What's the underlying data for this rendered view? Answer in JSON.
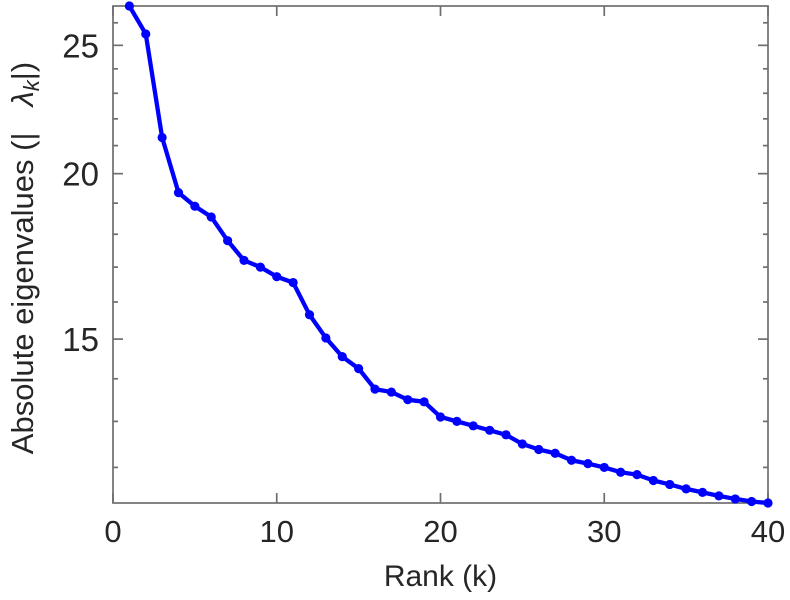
{
  "chart_data": {
    "type": "line",
    "title": "",
    "xlabel": "Rank (k)",
    "ylabel_text": "Absolute eigenvalues (|λk|)",
    "ylabel": {
      "prefix": "Absolute eigenvalues (|",
      "symbol": "λ",
      "subscript": "k",
      "suffix": "|)"
    },
    "x": [
      1,
      2,
      3,
      4,
      5,
      6,
      7,
      8,
      9,
      10,
      11,
      12,
      13,
      14,
      15,
      16,
      17,
      18,
      19,
      20,
      21,
      22,
      23,
      24,
      25,
      26,
      27,
      28,
      29,
      30,
      31,
      32,
      33,
      34,
      35,
      36,
      37,
      38,
      39,
      40
    ],
    "series": [
      {
        "name": "absolute-eigenvalues",
        "values": [
          26.77,
          25.5,
          21.3,
          19.35,
          18.9,
          18.55,
          17.8,
          17.2,
          17.0,
          16.72,
          16.55,
          15.65,
          15.03,
          14.55,
          14.25,
          13.75,
          13.68,
          13.5,
          13.45,
          13.1,
          13.0,
          12.9,
          12.8,
          12.7,
          12.5,
          12.38,
          12.3,
          12.15,
          12.08,
          12.0,
          11.9,
          11.85,
          11.73,
          11.65,
          11.56,
          11.49,
          11.42,
          11.36,
          11.31,
          11.28
        ]
      }
    ],
    "x_axis": {
      "scale": "linear",
      "lim": [
        0,
        40
      ],
      "ticks": [
        0,
        10,
        20,
        30,
        40
      ],
      "tick_labels": [
        "0",
        "10",
        "20",
        "30",
        "40"
      ]
    },
    "y_axis": {
      "scale": "log",
      "lim": [
        11.28,
        26.77
      ],
      "major_ticks": [
        15,
        20,
        25
      ],
      "major_tick_labels": [
        "15",
        "20",
        "25"
      ],
      "minor_ticks": [
        12,
        13,
        14,
        16,
        17,
        18,
        19,
        21,
        22,
        23,
        24,
        26
      ]
    },
    "grid": false,
    "legend": false,
    "marker": "filled-circle",
    "line_color": "#0000ff",
    "axis_color": "#6e6e6e",
    "text_color": "#262626",
    "background": "#ffffff"
  }
}
